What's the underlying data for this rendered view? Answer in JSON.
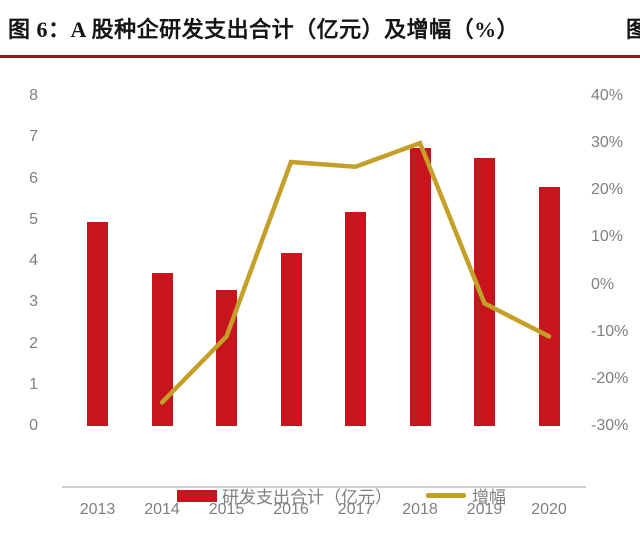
{
  "page": {
    "title": "图 6：A 股种企研发支出合计（亿元）及增幅（%）",
    "adjacent_partial_text": "图",
    "rule_color": "#8C1A1D",
    "text_gray": "#7F7F7F"
  },
  "chart_data": {
    "type": "bar",
    "subtype": "bar-with-line-overlay",
    "title": "图 6：A 股种企研发支出合计（亿元）及增幅（%）",
    "categories": [
      "2013",
      "2014",
      "2015",
      "2016",
      "2017",
      "2018",
      "2019",
      "2020"
    ],
    "series": [
      {
        "name": "研发支出合计（亿元）",
        "type": "bar",
        "axis": "left",
        "color": "#C8151D",
        "values": [
          4.95,
          3.7,
          3.3,
          4.2,
          5.2,
          6.75,
          6.5,
          5.8
        ]
      },
      {
        "name": "增幅",
        "type": "line",
        "axis": "right",
        "color": "#C5A028",
        "unit": "%",
        "values": [
          null,
          -25,
          -11,
          26,
          25,
          30,
          -4,
          -11
        ]
      }
    ],
    "left_axis": {
      "min": 0,
      "max": 8,
      "tick_step": 1,
      "tick_labels": [
        "0",
        "1",
        "2",
        "3",
        "4",
        "5",
        "6",
        "7",
        "8"
      ]
    },
    "right_axis": {
      "min": -30,
      "max": 40,
      "tick_step": 10,
      "tick_labels": [
        "40%",
        "30%",
        "20%",
        "10%",
        "0%",
        "-10%",
        "-20%",
        "-30%"
      ]
    },
    "grid": false,
    "legend_position": "bottom"
  }
}
